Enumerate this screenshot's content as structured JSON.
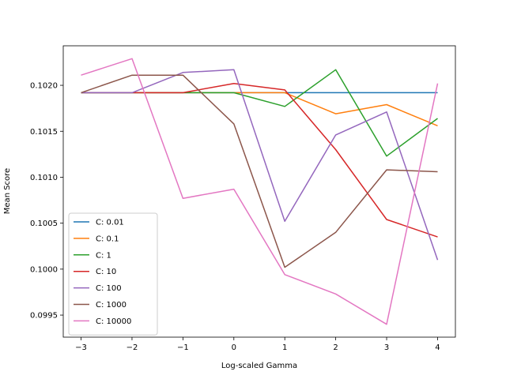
{
  "chart_data": {
    "type": "line",
    "title": "",
    "xlabel": "Log-scaled Gamma",
    "ylabel": "Mean Score",
    "x": [
      -3,
      -2,
      -1,
      0,
      1,
      2,
      3,
      4
    ],
    "xlim": [
      -3.35,
      4.35
    ],
    "ylim": [
      0.09926,
      0.10243
    ],
    "xticks": [
      -3,
      -2,
      -1,
      0,
      1,
      2,
      3,
      4
    ],
    "xtick_labels": [
      "−3",
      "−2",
      "−1",
      "0",
      "1",
      "2",
      "3",
      "4"
    ],
    "yticks": [
      0.0995,
      0.1,
      0.1005,
      0.101,
      0.1015,
      0.102
    ],
    "ytick_labels": [
      "0.0995",
      "0.1000",
      "0.1005",
      "0.1010",
      "0.1015",
      "0.1020"
    ],
    "grid": false,
    "legend_position": "lower-left",
    "series": [
      {
        "name": "C: 0.01",
        "color": "#1f77b4",
        "values": [
          0.10192,
          0.10192,
          0.10192,
          0.10192,
          0.10192,
          0.10192,
          0.10192,
          0.10192
        ]
      },
      {
        "name": "C: 0.1",
        "color": "#ff7f0e",
        "values": [
          0.10192,
          0.10192,
          0.10192,
          0.10192,
          0.10192,
          0.10169,
          0.10179,
          0.10156
        ]
      },
      {
        "name": "C: 1",
        "color": "#2ca02c",
        "values": [
          0.10192,
          0.10192,
          0.10192,
          0.10192,
          0.10177,
          0.10217,
          0.10123,
          0.10164
        ]
      },
      {
        "name": "C: 10",
        "color": "#d62728",
        "values": [
          0.10192,
          0.10192,
          0.10192,
          0.10202,
          0.10195,
          0.1013,
          0.10054,
          0.10035
        ]
      },
      {
        "name": "C: 100",
        "color": "#9467bd",
        "values": [
          0.10192,
          0.10192,
          0.10214,
          0.10217,
          0.10052,
          0.10146,
          0.10171,
          0.1001
        ]
      },
      {
        "name": "C: 1000",
        "color": "#8c564b",
        "values": [
          0.10192,
          0.10211,
          0.10211,
          0.10158,
          0.10002,
          0.1004,
          0.10108,
          0.10106
        ]
      },
      {
        "name": "C: 10000",
        "color": "#e377c2",
        "values": [
          0.10211,
          0.10229,
          0.10077,
          0.10087,
          0.09994,
          0.09973,
          0.0994,
          0.10202
        ]
      }
    ]
  }
}
